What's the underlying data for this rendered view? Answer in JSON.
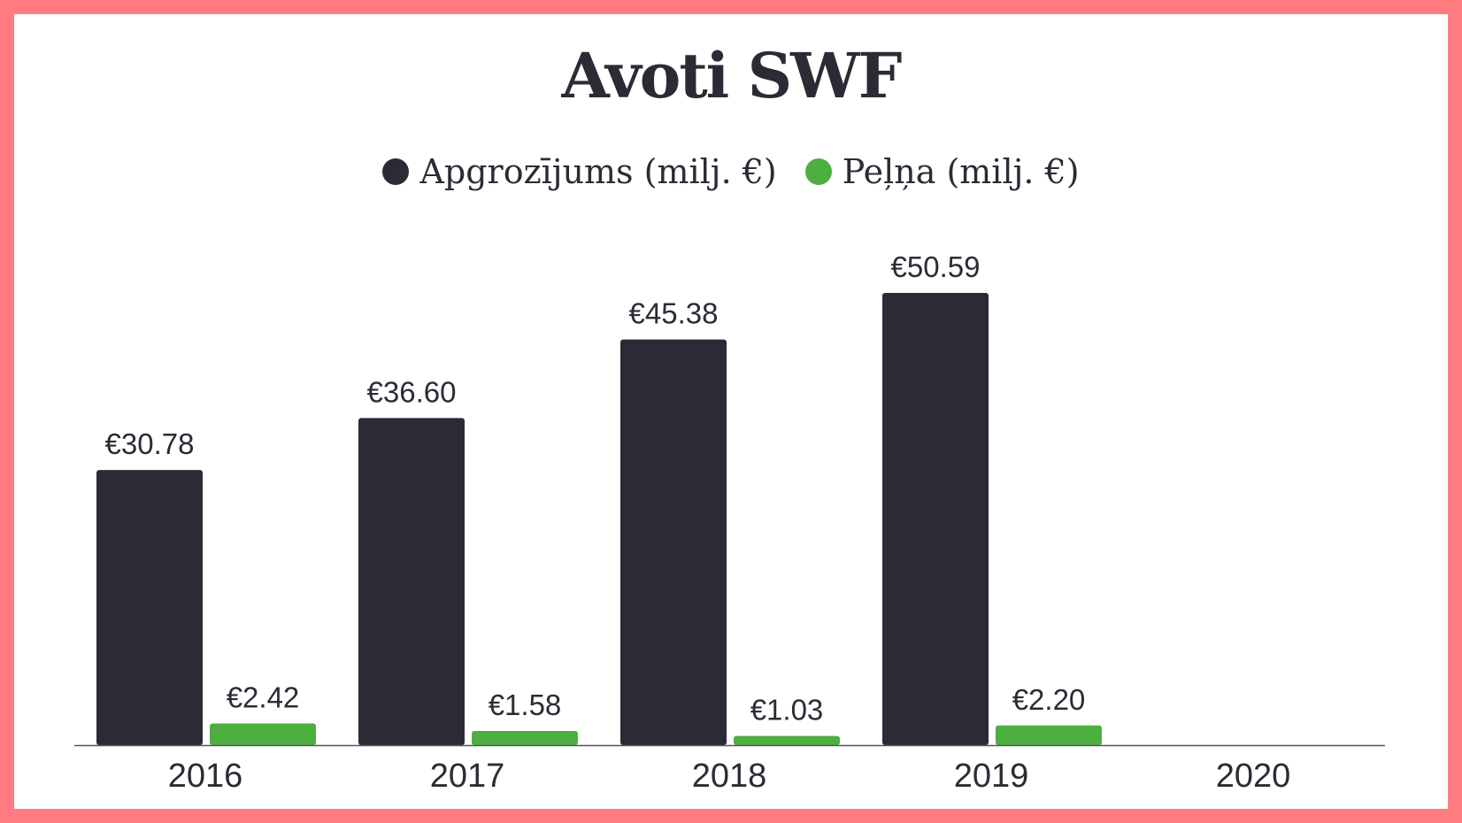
{
  "chart_data": {
    "type": "bar",
    "title": "Avoti SWF",
    "categories": [
      "2016",
      "2017",
      "2018",
      "2019",
      "2020"
    ],
    "series": [
      {
        "name": "Apgrozījums (milj. €)",
        "color": "#2c2b35",
        "values": [
          30.78,
          36.6,
          45.38,
          50.59,
          null
        ],
        "labels": [
          "€30.78",
          "€36.60",
          "€45.38",
          "€50.59",
          ""
        ]
      },
      {
        "name": "Peļņa (milj. €)",
        "color": "#4daf3f",
        "values": [
          2.42,
          1.58,
          1.03,
          2.2,
          null
        ],
        "labels": [
          "€2.42",
          "€1.58",
          "€1.03",
          "€2.20",
          ""
        ]
      }
    ],
    "xlabel": "",
    "ylabel": "",
    "ylim": [
      0,
      55
    ],
    "grid": false,
    "legend": "top-center"
  },
  "colors": {
    "frame": "#ff7b7f",
    "text": "#2c2b35",
    "axis": "#555555"
  }
}
